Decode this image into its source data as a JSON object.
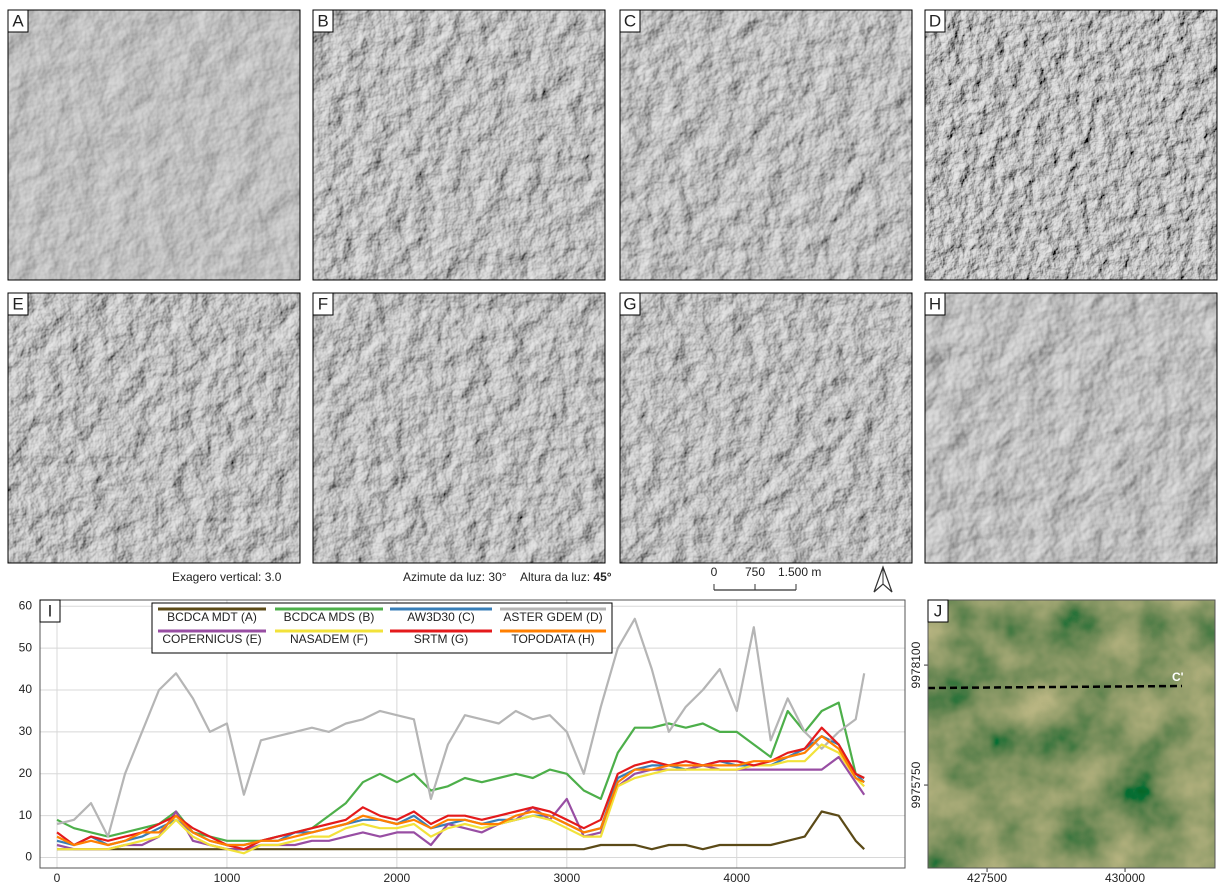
{
  "panels": [
    {
      "label": "A"
    },
    {
      "label": "B"
    },
    {
      "label": "C"
    },
    {
      "label": "D"
    },
    {
      "label": "E"
    },
    {
      "label": "F"
    },
    {
      "label": "G"
    },
    {
      "label": "H"
    }
  ],
  "caption": [
    {
      "label": "Exagero vertical:",
      "value": "3.0"
    },
    {
      "label": "Azimute da luz:",
      "value": "30°"
    },
    {
      "label": "Altura da luz:",
      "value": "45°"
    }
  ],
  "scale_bar": {
    "ticks": [
      0,
      750,
      {
        "value": 1500,
        "label": "1.500 m"
      }
    ]
  },
  "chart_data": [
    {
      "type": "line",
      "label": "I",
      "x": [
        0,
        100,
        200,
        300,
        400,
        500,
        600,
        700,
        800,
        900,
        1000,
        1100,
        1200,
        1300,
        1400,
        1500,
        1600,
        1700,
        1800,
        1900,
        2000,
        2100,
        2200,
        2300,
        2400,
        2500,
        2600,
        2700,
        2800,
        2900,
        3000,
        3100,
        3200,
        3300,
        3400,
        3500,
        3600,
        3700,
        3800,
        3900,
        4000,
        4100,
        4200,
        4300,
        4400,
        4500,
        4600,
        4700,
        4750
      ],
      "xlim": [
        -100,
        4990
      ],
      "xticks": [
        0,
        1000,
        2000,
        3000,
        4000
      ],
      "ylim": [
        -2.5,
        61.5
      ],
      "yticks": [
        0,
        10,
        20,
        30,
        40,
        50,
        60
      ],
      "grid": true,
      "series": [
        {
          "name": "BCDCA MDT (A)",
          "color": "#5b4a17",
          "values": [
            2,
            2,
            2,
            2,
            2,
            2,
            2,
            2,
            2,
            2,
            2,
            2,
            2,
            2,
            2,
            2,
            2,
            2,
            2,
            2,
            2,
            2,
            2,
            2,
            2,
            2,
            2,
            2,
            2,
            2,
            2,
            2,
            3,
            3,
            3,
            2,
            3,
            3,
            2,
            3,
            3,
            3,
            3,
            4,
            5,
            11,
            10,
            4,
            2
          ]
        },
        {
          "name": "BCDCA MDS (B)",
          "color": "#4daf4a",
          "values": [
            9,
            7,
            6,
            5,
            6,
            7,
            8,
            11,
            6,
            5,
            4,
            4,
            4,
            5,
            6,
            7,
            10,
            13,
            18,
            20,
            18,
            20,
            16,
            17,
            19,
            18,
            19,
            20,
            19,
            21,
            20,
            16,
            14,
            25,
            31,
            31,
            32,
            31,
            32,
            30,
            30,
            27,
            24,
            35,
            30,
            35,
            37,
            20,
            19
          ]
        },
        {
          "name": "AW3D30 (C)",
          "color": "#377eb8",
          "values": [
            4,
            3,
            5,
            3,
            4,
            5,
            7,
            9,
            6,
            4,
            3,
            3,
            4,
            4,
            6,
            6,
            7,
            8,
            9,
            9,
            8,
            10,
            7,
            8,
            9,
            8,
            9,
            9,
            10,
            10,
            8,
            6,
            7,
            19,
            21,
            22,
            22,
            21,
            22,
            23,
            22,
            22,
            22,
            24,
            26,
            29,
            27,
            20,
            18
          ]
        },
        {
          "name": "ASTER GDEM (D)",
          "color": "#b5b5b5",
          "values": [
            8,
            9,
            13,
            5,
            20,
            30,
            40,
            44,
            38,
            30,
            32,
            15,
            28,
            29,
            30,
            31,
            30,
            32,
            33,
            35,
            34,
            33,
            14,
            27,
            34,
            33,
            32,
            35,
            33,
            34,
            30,
            20,
            36,
            50,
            57,
            45,
            30,
            36,
            40,
            45,
            35,
            55,
            28,
            38,
            30,
            26,
            30,
            33,
            44
          ]
        },
        {
          "name": "COPERNICUS (E)",
          "color": "#984ea3",
          "values": [
            3,
            2,
            2,
            2,
            3,
            3,
            5,
            11,
            4,
            3,
            2,
            2,
            3,
            3,
            3,
            4,
            4,
            5,
            6,
            5,
            6,
            6,
            3,
            8,
            7,
            6,
            8,
            9,
            12,
            9,
            14,
            5,
            6,
            17,
            20,
            21,
            21,
            21,
            22,
            21,
            21,
            21,
            21,
            21,
            21,
            21,
            24,
            18,
            15
          ]
        },
        {
          "name": "NASADEM (F)",
          "color": "#f2e23a",
          "values": [
            2,
            2,
            2,
            2,
            3,
            4,
            5,
            9,
            5,
            3,
            2,
            1,
            3,
            3,
            4,
            5,
            5,
            7,
            8,
            7,
            7,
            8,
            5,
            7,
            8,
            7,
            8,
            9,
            10,
            9,
            7,
            5,
            5,
            17,
            19,
            20,
            21,
            21,
            21,
            21,
            21,
            22,
            22,
            23,
            23,
            27,
            25,
            19,
            17
          ]
        },
        {
          "name": "SRTM (G)",
          "color": "#e41a1c",
          "values": [
            6,
            3,
            5,
            4,
            5,
            6,
            8,
            10,
            7,
            5,
            3,
            2,
            4,
            5,
            6,
            7,
            8,
            9,
            12,
            10,
            9,
            11,
            8,
            10,
            10,
            9,
            10,
            11,
            12,
            11,
            9,
            7,
            9,
            20,
            22,
            23,
            22,
            23,
            22,
            23,
            23,
            22,
            23,
            25,
            26,
            31,
            27,
            20,
            19
          ]
        },
        {
          "name": "TOPODATA (H)",
          "color": "#ff7f00",
          "values": [
            5,
            3,
            4,
            3,
            4,
            6,
            6,
            10,
            6,
            4,
            3,
            3,
            4,
            4,
            5,
            6,
            7,
            8,
            10,
            9,
            8,
            9,
            7,
            9,
            9,
            8,
            8,
            10,
            11,
            10,
            8,
            6,
            7,
            18,
            21,
            21,
            22,
            22,
            22,
            22,
            22,
            23,
            23,
            24,
            25,
            29,
            26,
            19,
            18
          ]
        }
      ]
    },
    {
      "type": "map",
      "label": "J",
      "annotation": "C'",
      "xlim": [
        426430,
        431630
      ],
      "xticks": [
        427500,
        430000
      ],
      "ylim": [
        9974125,
        9979375
      ],
      "yticks": [
        9975750,
        9978100
      ]
    }
  ]
}
